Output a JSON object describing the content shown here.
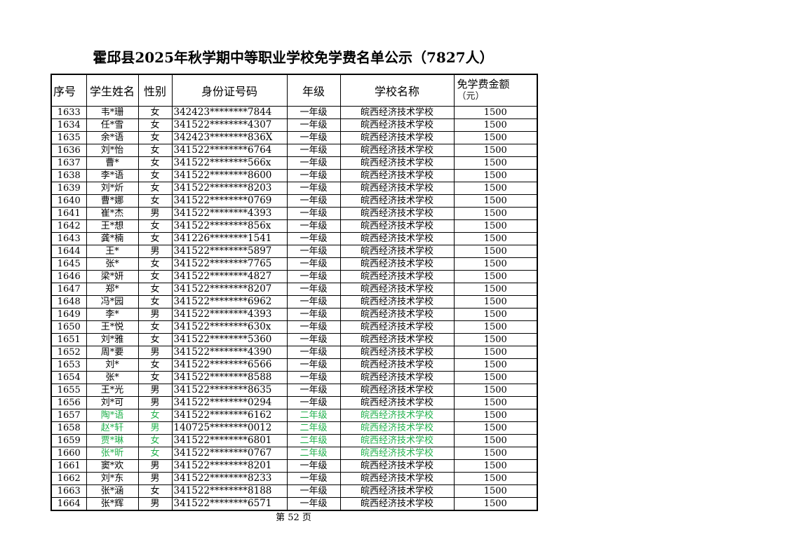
{
  "title": "霍邱县2025年秋学期中等职业学校免学费名单公示（7827人）",
  "headers": {
    "seq": "序号",
    "name": "学生姓名",
    "gender": "性别",
    "id": "身份证号码",
    "grade": "年级",
    "school": "学校名称",
    "amount": "免学费金额",
    "amount_unit": "（元）"
  },
  "highlight_color": "#21b04b",
  "rows": [
    {
      "seq": "1633",
      "name": "韦*珊",
      "gender": "女",
      "id": "342423********7844",
      "grade": "一年级",
      "school": "皖西经济技术学校",
      "amount": "1500"
    },
    {
      "seq": "1634",
      "name": "任*雪",
      "gender": "女",
      "id": "341522********4307",
      "grade": "一年级",
      "school": "皖西经济技术学校",
      "amount": "1500"
    },
    {
      "seq": "1635",
      "name": "余*语",
      "gender": "女",
      "id": "342423********836X",
      "grade": "一年级",
      "school": "皖西经济技术学校",
      "amount": "1500"
    },
    {
      "seq": "1636",
      "name": "刘*怡",
      "gender": "女",
      "id": "341522********6764",
      "grade": "一年级",
      "school": "皖西经济技术学校",
      "amount": "1500"
    },
    {
      "seq": "1637",
      "name": "曹*",
      "gender": "女",
      "id": "341522********566x",
      "grade": "一年级",
      "school": "皖西经济技术学校",
      "amount": "1500"
    },
    {
      "seq": "1638",
      "name": "李*语",
      "gender": "女",
      "id": "341522********8600",
      "grade": "一年级",
      "school": "皖西经济技术学校",
      "amount": "1500"
    },
    {
      "seq": "1639",
      "name": "刘*炘",
      "gender": "女",
      "id": "341522********8203",
      "grade": "一年级",
      "school": "皖西经济技术学校",
      "amount": "1500"
    },
    {
      "seq": "1640",
      "name": "曹*娜",
      "gender": "女",
      "id": "341522********0769",
      "grade": "一年级",
      "school": "皖西经济技术学校",
      "amount": "1500"
    },
    {
      "seq": "1641",
      "name": "崔*杰",
      "gender": "男",
      "id": "341522********4393",
      "grade": "一年级",
      "school": "皖西经济技术学校",
      "amount": "1500"
    },
    {
      "seq": "1642",
      "name": "王*想",
      "gender": "女",
      "id": "341522********856x",
      "grade": "一年级",
      "school": "皖西经济技术学校",
      "amount": "1500"
    },
    {
      "seq": "1643",
      "name": "龚*楠",
      "gender": "女",
      "id": "341226********1541",
      "grade": "一年级",
      "school": "皖西经济技术学校",
      "amount": "1500"
    },
    {
      "seq": "1644",
      "name": "王*",
      "gender": "男",
      "id": "341522********5897",
      "grade": "一年级",
      "school": "皖西经济技术学校",
      "amount": "1500"
    },
    {
      "seq": "1645",
      "name": "张*",
      "gender": "女",
      "id": "341522********7765",
      "grade": "一年级",
      "school": "皖西经济技术学校",
      "amount": "1500"
    },
    {
      "seq": "1646",
      "name": "梁*妍",
      "gender": "女",
      "id": "341522********4827",
      "grade": "一年级",
      "school": "皖西经济技术学校",
      "amount": "1500"
    },
    {
      "seq": "1647",
      "name": "郑*",
      "gender": "女",
      "id": "341522********8207",
      "grade": "一年级",
      "school": "皖西经济技术学校",
      "amount": "1500"
    },
    {
      "seq": "1648",
      "name": "冯*园",
      "gender": "女",
      "id": "341522********6962",
      "grade": "一年级",
      "school": "皖西经济技术学校",
      "amount": "1500"
    },
    {
      "seq": "1649",
      "name": "李*",
      "gender": "男",
      "id": "341522********4393",
      "grade": "一年级",
      "school": "皖西经济技术学校",
      "amount": "1500"
    },
    {
      "seq": "1650",
      "name": "王*悦",
      "gender": "女",
      "id": "341522********630x",
      "grade": "一年级",
      "school": "皖西经济技术学校",
      "amount": "1500"
    },
    {
      "seq": "1651",
      "name": "刘*雅",
      "gender": "女",
      "id": "341522********5360",
      "grade": "一年级",
      "school": "皖西经济技术学校",
      "amount": "1500"
    },
    {
      "seq": "1652",
      "name": "周*要",
      "gender": "男",
      "id": "341522********4390",
      "grade": "一年级",
      "school": "皖西经济技术学校",
      "amount": "1500"
    },
    {
      "seq": "1653",
      "name": "刘*",
      "gender": "女",
      "id": "341522********6566",
      "grade": "一年级",
      "school": "皖西经济技术学校",
      "amount": "1500"
    },
    {
      "seq": "1654",
      "name": "张*",
      "gender": "女",
      "id": "341522********8588",
      "grade": "一年级",
      "school": "皖西经济技术学校",
      "amount": "1500"
    },
    {
      "seq": "1655",
      "name": "王*光",
      "gender": "男",
      "id": "341522********8635",
      "grade": "一年级",
      "school": "皖西经济技术学校",
      "amount": "1500"
    },
    {
      "seq": "1656",
      "name": "刘*可",
      "gender": "男",
      "id": "341522********0294",
      "grade": "一年级",
      "school": "皖西经济技术学校",
      "amount": "1500"
    },
    {
      "seq": "1657",
      "name": "陶*语",
      "gender": "女",
      "id": "341522********6162",
      "grade": "二年级",
      "school": "皖西经济技术学校",
      "amount": "1500",
      "highlight": true
    },
    {
      "seq": "1658",
      "name": "赵*轩",
      "gender": "男",
      "id": "140725********0012",
      "grade": "二年级",
      "school": "皖西经济技术学校",
      "amount": "1500",
      "highlight": true
    },
    {
      "seq": "1659",
      "name": "贾*琳",
      "gender": "女",
      "id": "341522********6801",
      "grade": "二年级",
      "school": "皖西经济技术学校",
      "amount": "1500",
      "highlight": true
    },
    {
      "seq": "1660",
      "name": "张*昕",
      "gender": "女",
      "id": "341522********0767",
      "grade": "二年级",
      "school": "皖西经济技术学校",
      "amount": "1500",
      "highlight": true
    },
    {
      "seq": "1661",
      "name": "窦*欢",
      "gender": "男",
      "id": "341522********8201",
      "grade": "一年级",
      "school": "皖西经济技术学校",
      "amount": "1500"
    },
    {
      "seq": "1662",
      "name": "刘*东",
      "gender": "男",
      "id": "341522********8233",
      "grade": "一年级",
      "school": "皖西经济技术学校",
      "amount": "1500"
    },
    {
      "seq": "1663",
      "name": "张*涵",
      "gender": "女",
      "id": "341522********8188",
      "grade": "一年级",
      "school": "皖西经济技术学校",
      "amount": "1500"
    },
    {
      "seq": "1664",
      "name": "张*辉",
      "gender": "男",
      "id": "341522********6571",
      "grade": "一年级",
      "school": "皖西经济技术学校",
      "amount": "1500"
    }
  ],
  "footer": "第  52  页"
}
